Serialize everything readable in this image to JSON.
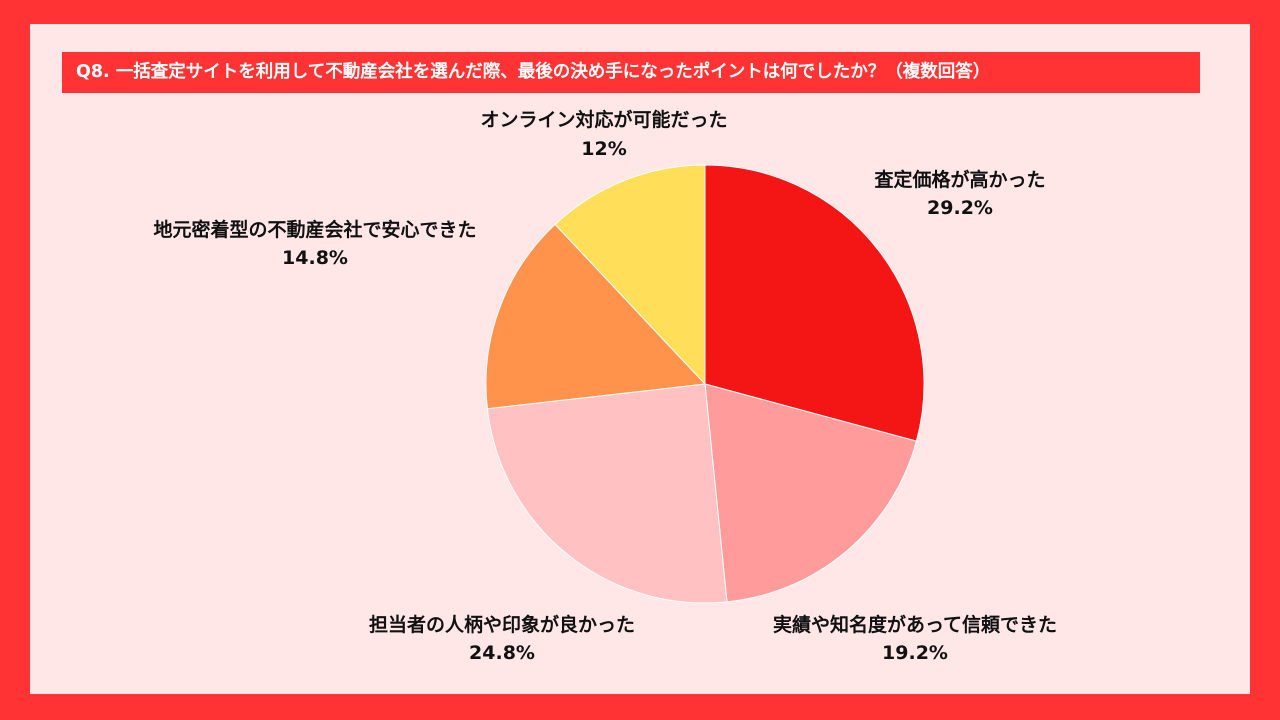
{
  "header": {
    "title": "Q8. 一括査定サイトを利用して不動産会社を選んだ際、最後の決め手になったポイントは何でしたか？（複数回答）"
  },
  "colors": {
    "frame": "#FF3333",
    "panel": "#FFE7E8",
    "title_text": "#FFFFFF"
  },
  "chart_data": {
    "type": "pie",
    "title": "Q8. 一括査定サイトを利用して不動産会社を選んだ際、最後の決め手になったポイントは何でしたか？（複数回答）",
    "start_angle": "12 o'clock",
    "direction": "clockwise",
    "slices": [
      {
        "label": "査定価格が高かった",
        "value": 29.2,
        "display": "29.2%",
        "color": "#F41515"
      },
      {
        "label": "実績や知名度があって信頼できた",
        "value": 19.2,
        "display": "19.2%",
        "color": "#FF9C9B"
      },
      {
        "label": "担当者の人柄や印象が良かった",
        "value": 24.8,
        "display": "24.8%",
        "color": "#FFC1C1"
      },
      {
        "label": "地元密着型の不動産会社で安心できた",
        "value": 14.8,
        "display": "14.8%",
        "color": "#FF934C"
      },
      {
        "label": "オンライン対応が可能だった",
        "value": 12,
        "display": "12%",
        "color": "#FFDF5A"
      }
    ]
  }
}
